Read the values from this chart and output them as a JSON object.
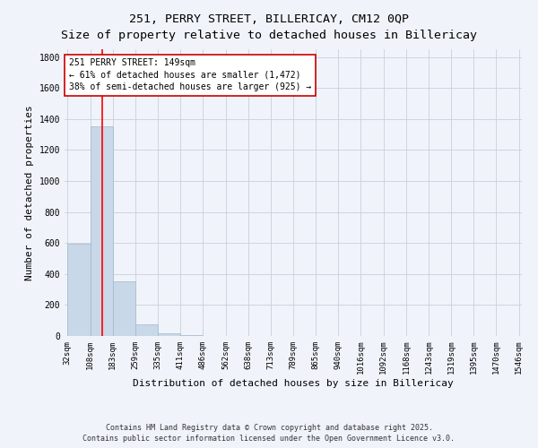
{
  "title_line1": "251, PERRY STREET, BILLERICAY, CM12 0QP",
  "title_line2": "Size of property relative to detached houses in Billericay",
  "xlabel": "Distribution of detached houses by size in Billericay",
  "ylabel": "Number of detached properties",
  "bar_edges": [
    32,
    108,
    183,
    259,
    335,
    411,
    486,
    562,
    638,
    713,
    789,
    865,
    940,
    1016,
    1092,
    1168,
    1243,
    1319,
    1395,
    1470,
    1546
  ],
  "bar_heights": [
    597,
    1352,
    352,
    75,
    17,
    5,
    2,
    1,
    0,
    1,
    0,
    0,
    0,
    0,
    0,
    0,
    0,
    0,
    0,
    0
  ],
  "bar_color": "#c8d8e8",
  "bar_edge_color": "#a0b8cc",
  "red_line_x": 149,
  "annotation_line1": "251 PERRY STREET: 149sqm",
  "annotation_line2": "← 61% of detached houses are smaller (1,472)",
  "annotation_line3": "38% of semi-detached houses are larger (925) →",
  "annotation_box_color": "#ffffff",
  "annotation_border_color": "#cc0000",
  "footer_line1": "Contains HM Land Registry data © Crown copyright and database right 2025.",
  "footer_line2": "Contains public sector information licensed under the Open Government Licence v3.0.",
  "bg_color": "#f0f4fa",
  "grid_color": "#c8d0dc",
  "ylim": [
    0,
    1850
  ],
  "yticks": [
    0,
    200,
    400,
    600,
    800,
    1000,
    1200,
    1400,
    1600,
    1800
  ],
  "title_fontsize": 9.5,
  "ylabel_fontsize": 8,
  "xlabel_fontsize": 8,
  "tick_fontsize": 6.5,
  "annotation_fontsize": 7,
  "footer_fontsize": 6
}
